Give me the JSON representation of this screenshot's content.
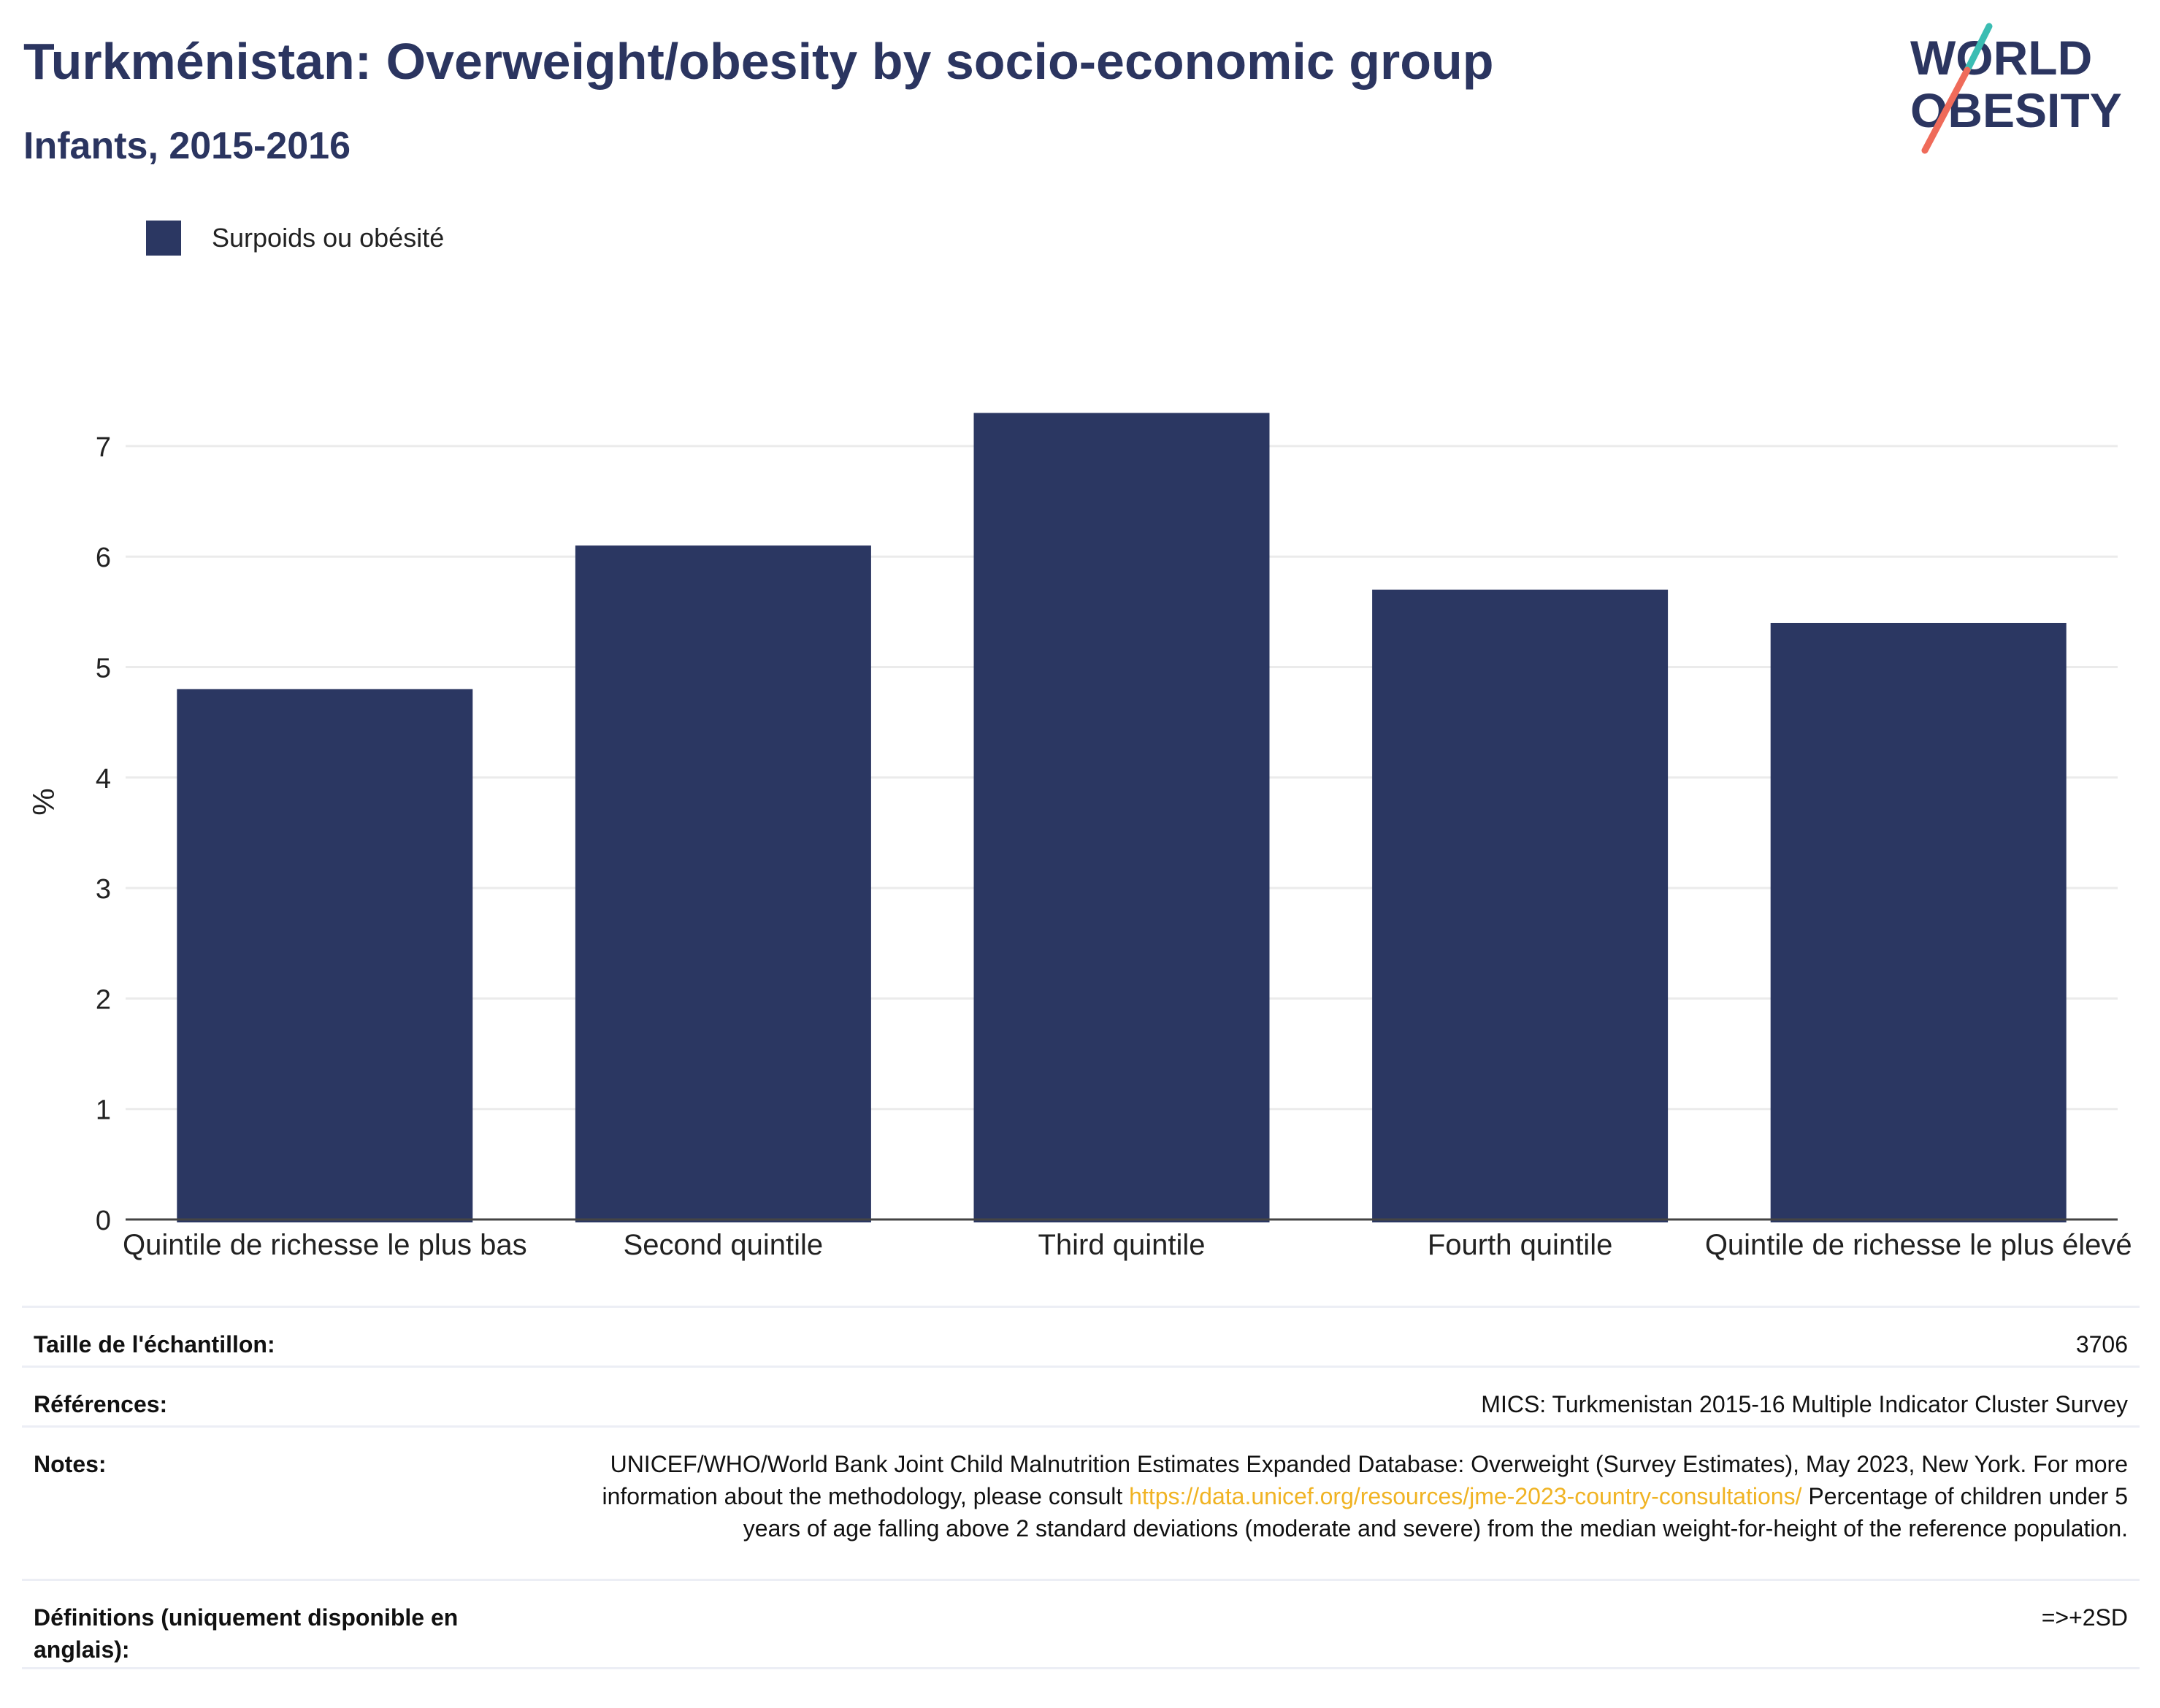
{
  "header": {
    "title": "Turkménistan: Overweight/obesity by socio-economic group",
    "subtitle": "Infants, 2015-2016"
  },
  "logo": {
    "line1": "WORLD",
    "line2": "OBESITY"
  },
  "legend": {
    "label": "Surpoids ou obésité",
    "color": "#2b3762"
  },
  "chart_data": {
    "type": "bar",
    "categories": [
      "Quintile de richesse le plus bas",
      "Second quintile",
      "Third quintile",
      "Fourth quintile",
      "Quintile de richesse le plus élevé"
    ],
    "series": [
      {
        "name": "Surpoids ou obésité",
        "values": [
          4.8,
          6.1,
          7.3,
          5.7,
          5.4
        ],
        "color": "#2b3762"
      }
    ],
    "ylabel": "%",
    "ylim": [
      0,
      7.5
    ],
    "yticks": [
      0,
      1,
      2,
      3,
      4,
      5,
      6,
      7
    ],
    "grid": true,
    "legend_position": "top-left"
  },
  "info": {
    "rows": [
      {
        "key": "Taille de l'échantillon:",
        "value": "3706"
      },
      {
        "key": "Références:",
        "value": "MICS: Turkmenistan 2015-16 Multiple Indicator Cluster Survey"
      },
      {
        "key": "Notes:",
        "value_part1": "UNICEF/WHO/World Bank Joint Child Malnutrition Estimates Expanded Database: Overweight (Survey Estimates), May 2023, New York. For more information about the methodology, please consult",
        "link": "https://data.unicef.org/resources/jme-2023-country-consultations/",
        "value_part2": "Percentage of children under 5 years of age falling above 2 standard deviations (moderate and severe) from the median weight-for-height of the reference population."
      },
      {
        "key": "Définitions (uniquement disponible en anglais):",
        "value": "=>+2SD"
      }
    ]
  }
}
